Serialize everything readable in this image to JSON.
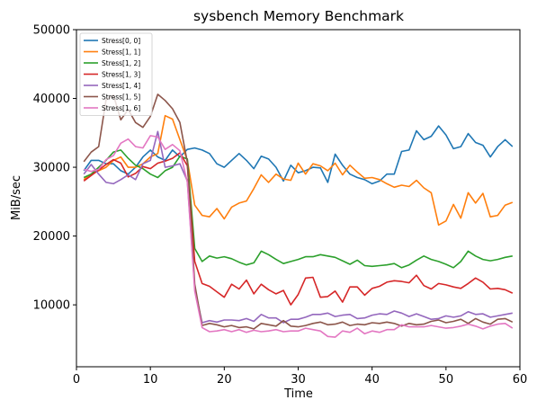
{
  "chart_data": {
    "type": "line",
    "title": "sysbench Memory Benchmark",
    "xlabel": "Time",
    "ylabel": "MiB/sec",
    "xlim": [
      0,
      60
    ],
    "ylim": [
      1000,
      50000
    ],
    "xticks": [
      0,
      10,
      20,
      30,
      40,
      50,
      60
    ],
    "yticks": [
      10000,
      20000,
      30000,
      40000,
      50000
    ],
    "grid": false,
    "legend_position": "top-left",
    "x": [
      1,
      2,
      3,
      4,
      5,
      6,
      7,
      8,
      9,
      10,
      11,
      12,
      13,
      14,
      15,
      16,
      17,
      18,
      19,
      20,
      21,
      22,
      23,
      24,
      25,
      26,
      27,
      28,
      29,
      30,
      31,
      32,
      33,
      34,
      35,
      36,
      37,
      38,
      39,
      40,
      41,
      42,
      43,
      44,
      45,
      46,
      47,
      48,
      49,
      50,
      51,
      52,
      53,
      54,
      55,
      56,
      57,
      58,
      59
    ],
    "series": [
      {
        "name": "Stress[0, 0]",
        "color": "#1f77b4",
        "values": [
          29500,
          31000,
          31000,
          30500,
          30500,
          29500,
          29000,
          30000,
          31500,
          32500,
          31500,
          31000,
          32500,
          31500,
          32600,
          32800,
          32500,
          32000,
          30500,
          30000,
          31000,
          32000,
          31000,
          29800,
          31600,
          31200,
          30000,
          28000,
          30300,
          29200,
          29500,
          30000,
          29900,
          27800,
          31900,
          30300,
          29000,
          28500,
          28200,
          27600,
          28000,
          29000,
          29000,
          32300,
          32500,
          35300,
          34000,
          34500,
          36000,
          34700,
          32700,
          33000,
          34900,
          33600,
          33200,
          31500,
          33000,
          34000,
          33000
        ]
      },
      {
        "name": "Stress[1, 1]",
        "color": "#ff7f0e",
        "values": [
          28200,
          29000,
          29500,
          30000,
          31000,
          31500,
          30000,
          30000,
          30500,
          31500,
          32000,
          37500,
          37000,
          34000,
          31000,
          24500,
          23000,
          22800,
          24000,
          22500,
          24200,
          24800,
          25100,
          26900,
          28900,
          27800,
          29000,
          28300,
          28100,
          30600,
          29000,
          30500,
          30200,
          29500,
          30600,
          28900,
          30300,
          29300,
          28400,
          28500,
          28200,
          27600,
          27100,
          27400,
          27200,
          28100,
          27000,
          26300,
          21600,
          22200,
          24600,
          22600,
          26300,
          24800,
          26200,
          22800,
          23000,
          24500,
          24900
        ]
      },
      {
        "name": "Stress[1, 2]",
        "color": "#2ca02c",
        "values": [
          28500,
          29000,
          30000,
          31000,
          32200,
          32500,
          31300,
          30300,
          29800,
          29000,
          28500,
          29500,
          30000,
          31600,
          31200,
          18200,
          16300,
          17100,
          16800,
          17000,
          16700,
          16200,
          15800,
          16100,
          17800,
          17300,
          16600,
          16000,
          16300,
          16600,
          17000,
          17000,
          17300,
          17100,
          16900,
          16400,
          15900,
          16500,
          15700,
          15600,
          15700,
          15800,
          16000,
          15400,
          15800,
          16500,
          17100,
          16600,
          16300,
          15900,
          15400,
          16300,
          17800,
          17100,
          16600,
          16400,
          16600,
          16900,
          17100
        ]
      },
      {
        "name": "Stress[1, 3]",
        "color": "#d62728",
        "values": [
          28000,
          28800,
          29600,
          30400,
          31100,
          30600,
          28600,
          29100,
          30100,
          29800,
          30600,
          30900,
          31300,
          32100,
          30200,
          16300,
          13100,
          12700,
          11900,
          11100,
          13000,
          12300,
          13600,
          11600,
          13000,
          12200,
          11600,
          12100,
          10000,
          11500,
          13900,
          14000,
          11100,
          11200,
          12000,
          10400,
          12600,
          12600,
          11400,
          12400,
          12700,
          13300,
          13500,
          13400,
          13200,
          14300,
          12800,
          12300,
          13100,
          12900,
          12600,
          12400,
          13100,
          13900,
          13300,
          12300,
          12400,
          12200,
          11700
        ]
      },
      {
        "name": "Stress[1, 4]",
        "color": "#9467bd",
        "values": [
          29000,
          30400,
          29000,
          27800,
          27600,
          28200,
          28900,
          28200,
          30500,
          31000,
          35200,
          30000,
          30200,
          30500,
          28000,
          12500,
          7400,
          7700,
          7500,
          7800,
          7800,
          7700,
          8000,
          7600,
          8600,
          8100,
          8100,
          7400,
          7900,
          7900,
          8200,
          8600,
          8600,
          8800,
          8300,
          8500,
          8600,
          8000,
          8100,
          8500,
          8700,
          8600,
          9100,
          8800,
          8300,
          8700,
          8300,
          7900,
          8000,
          8400,
          8200,
          8400,
          9000,
          8600,
          8700,
          8200,
          8400,
          8600,
          8800
        ]
      },
      {
        "name": "Stress[1, 5]",
        "color": "#8c564b",
        "values": [
          30800,
          32200,
          33000,
          39800,
          40500,
          36900,
          38400,
          36500,
          35800,
          37400,
          40600,
          39700,
          38500,
          36500,
          30700,
          13000,
          7000,
          7300,
          7100,
          6800,
          7000,
          6700,
          6800,
          6500,
          7300,
          7100,
          6900,
          7700,
          6900,
          6800,
          7000,
          7300,
          7500,
          7100,
          7200,
          7500,
          7000,
          7200,
          7100,
          7400,
          7300,
          7500,
          7300,
          6900,
          7300,
          7100,
          7200,
          7600,
          7800,
          7400,
          7600,
          7900,
          7300,
          8000,
          7500,
          7200,
          7900,
          8000,
          7500
        ]
      },
      {
        "name": "Stress[1, 6]",
        "color": "#e377c2",
        "values": [
          29700,
          29400,
          29700,
          31100,
          31700,
          33500,
          34100,
          33000,
          32800,
          34600,
          34400,
          32600,
          33300,
          32400,
          27800,
          12000,
          6700,
          6100,
          6200,
          6400,
          6100,
          6400,
          6000,
          6300,
          6100,
          6200,
          6400,
          6100,
          6200,
          6200,
          6600,
          6400,
          6200,
          5400,
          5300,
          6200,
          6000,
          6600,
          5800,
          6200,
          6000,
          6400,
          6400,
          7100,
          6800,
          6800,
          6800,
          7000,
          6800,
          6600,
          6700,
          6900,
          7200,
          6900,
          6500,
          6900,
          7200,
          7300,
          6600
        ]
      }
    ]
  }
}
